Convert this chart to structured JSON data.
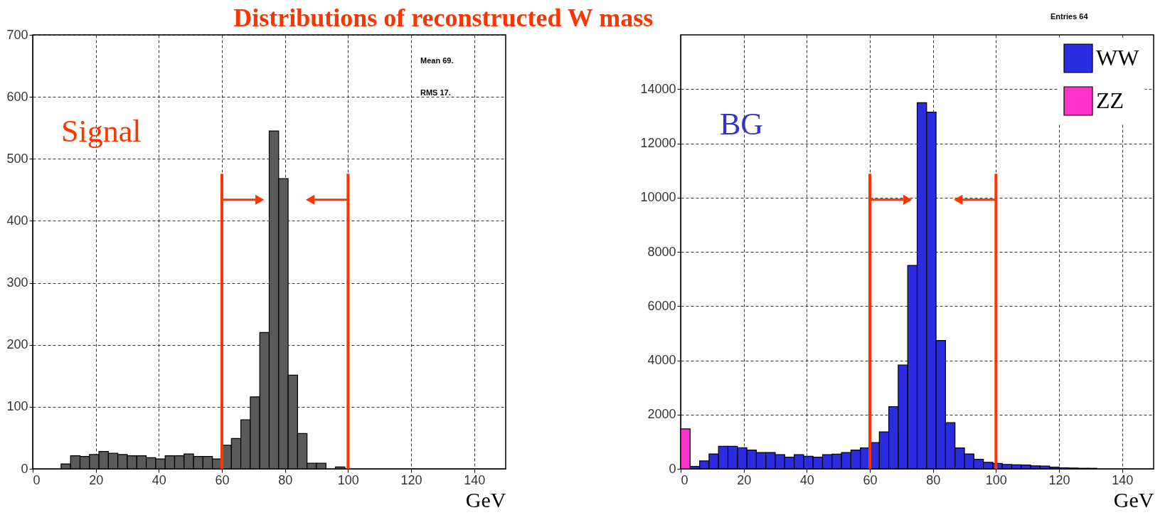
{
  "chart_data": [
    {
      "type": "histogram",
      "title": "Distributions of reconstructed W mass",
      "xlabel": "GeV",
      "bins": [
        0,
        3,
        6,
        9,
        12,
        15,
        18,
        21,
        24,
        27,
        30,
        33,
        36,
        39,
        42,
        45,
        48,
        51,
        54,
        57,
        60,
        63,
        66,
        69,
        72,
        75,
        78,
        81,
        84,
        87,
        90,
        93,
        96,
        99,
        102,
        105,
        108,
        111,
        114,
        117,
        120,
        123,
        126,
        129,
        132,
        135,
        138,
        141,
        144,
        147,
        150
      ],
      "series": [
        {
          "color": "#5a5a5a",
          "values": [
            0,
            0,
            0,
            8,
            21,
            20,
            23,
            28,
            25,
            23,
            21,
            21,
            18,
            16,
            21,
            21,
            24,
            20,
            20,
            16,
            38,
            49,
            79,
            116,
            220,
            545,
            468,
            151,
            57,
            9,
            9,
            0,
            3,
            0,
            0,
            0,
            0,
            0,
            0,
            0,
            0,
            0,
            0,
            0,
            0,
            0,
            0,
            0,
            0,
            0
          ]
        }
      ],
      "xlim": [
        0,
        150
      ],
      "xticks": [
        0,
        20,
        40,
        60,
        80,
        100,
        120,
        140
      ],
      "ylim": [
        0,
        700
      ],
      "yticks": [
        0,
        100,
        200,
        300,
        400,
        500,
        600,
        700
      ],
      "grid": true,
      "ref_lines": [
        {
          "axis": "x",
          "value": 60,
          "color": "#ff3300"
        },
        {
          "axis": "x",
          "value": 100,
          "color": "#ff3300"
        }
      ],
      "annotations": [
        "Signal",
        "Mean 69.",
        "RMS 17."
      ]
    },
    {
      "type": "histogram",
      "xlabel": "GeV",
      "bins": [
        0,
        3,
        6,
        9,
        12,
        15,
        18,
        21,
        24,
        27,
        30,
        33,
        36,
        39,
        42,
        45,
        48,
        51,
        54,
        57,
        60,
        63,
        66,
        69,
        72,
        75,
        78,
        81,
        84,
        87,
        90,
        93,
        96,
        99,
        102,
        105,
        108,
        111,
        114,
        117,
        120,
        123,
        126,
        129,
        132,
        135,
        138,
        141,
        144,
        147,
        150
      ],
      "series": [
        {
          "name": "WW",
          "color": "#2b2be0",
          "values": [
            null,
            90,
            290,
            550,
            830,
            830,
            780,
            690,
            600,
            600,
            520,
            430,
            520,
            460,
            430,
            520,
            540,
            600,
            690,
            770,
            970,
            1360,
            2290,
            3830,
            7500,
            13500,
            13150,
            4730,
            1700,
            770,
            550,
            350,
            240,
            200,
            160,
            150,
            140,
            110,
            100,
            60,
            40,
            30,
            20,
            20,
            0,
            0,
            0,
            0,
            0,
            0
          ]
        },
        {
          "name": "ZZ",
          "color": "#ff33cc",
          "values": [
            1470,
            0,
            0,
            0,
            0,
            0,
            0,
            0,
            0,
            0,
            0,
            0,
            0,
            0,
            0,
            0,
            0,
            0,
            0,
            0,
            0,
            0,
            0,
            0,
            0,
            0,
            0,
            0,
            0,
            0,
            0,
            0,
            0,
            0,
            0,
            0,
            0,
            0,
            0,
            0,
            0,
            0,
            0,
            0,
            0,
            0,
            0,
            0,
            0,
            0
          ]
        }
      ],
      "xlim": [
        0,
        150
      ],
      "xticks": [
        0,
        20,
        40,
        60,
        80,
        100,
        120,
        140
      ],
      "ylim": [
        0,
        16000
      ],
      "yticks": [
        0,
        2000,
        4000,
        6000,
        8000,
        10000,
        12000,
        14000
      ],
      "grid": true,
      "legend": "top right",
      "ref_lines": [
        {
          "axis": "x",
          "value": 60,
          "color": "#ff3300"
        },
        {
          "axis": "x",
          "value": 100,
          "color": "#ff3300"
        }
      ],
      "annotations": [
        "BG",
        "Entries 64"
      ]
    }
  ]
}
